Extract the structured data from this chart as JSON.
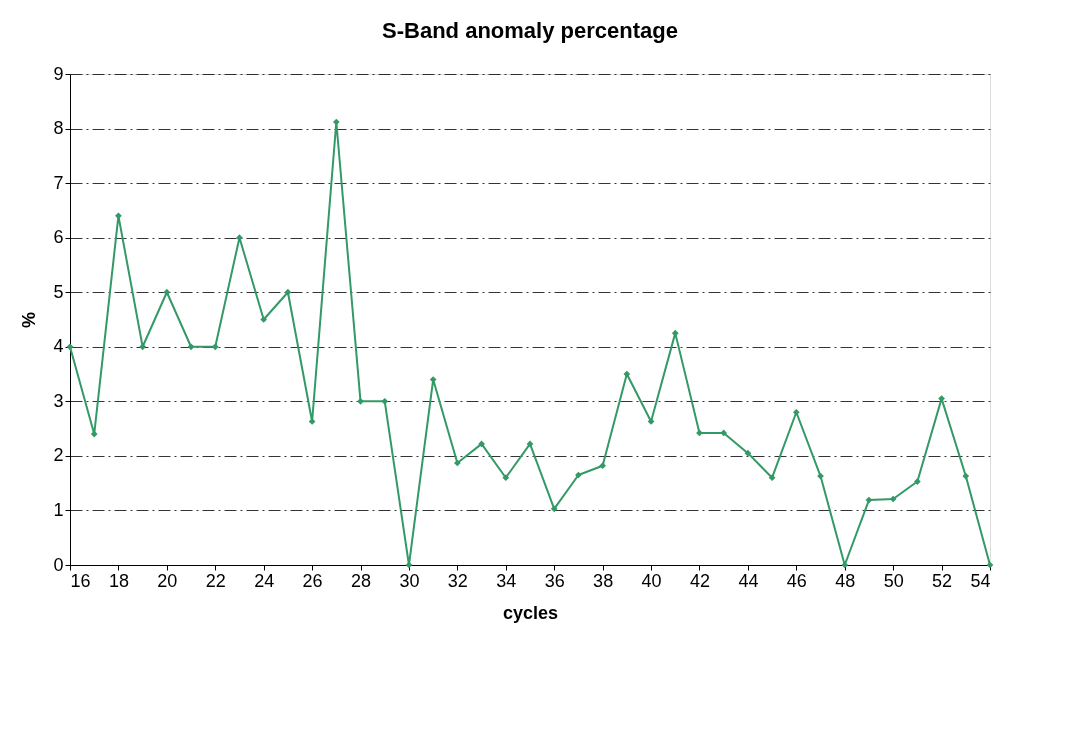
{
  "chart_data": {
    "type": "line",
    "title": "S-Band anomaly percentage",
    "xlabel": "cycles",
    "ylabel": "%",
    "x": [
      16,
      17,
      18,
      19,
      20,
      21,
      22,
      23,
      24,
      25,
      26,
      27,
      28,
      29,
      30,
      31,
      32,
      33,
      34,
      35,
      36,
      37,
      38,
      39,
      40,
      41,
      42,
      43,
      44,
      45,
      46,
      47,
      48,
      49,
      50,
      51,
      52,
      53,
      54
    ],
    "series": [
      {
        "color": "#339966",
        "values": [
          4,
          2.4,
          6.4,
          4,
          5,
          4,
          4,
          6,
          4.5,
          5,
          2.63,
          8.12,
          3,
          3,
          0,
          3.4,
          1.87,
          2.22,
          1.6,
          2.22,
          1.03,
          1.65,
          1.82,
          3.5,
          2.63,
          4.25,
          2.42,
          2.42,
          2.05,
          1.6,
          2.8,
          1.63,
          0,
          1.19,
          1.21,
          1.53,
          3.05,
          1.63,
          0
        ]
      }
    ],
    "xlim": [
      16,
      54
    ],
    "xticks": [
      16,
      18,
      20,
      22,
      24,
      26,
      28,
      30,
      32,
      34,
      36,
      38,
      40,
      42,
      44,
      46,
      48,
      50,
      52,
      54
    ],
    "ylim": [
      0,
      9
    ],
    "yticks": [
      0,
      1,
      2,
      3,
      4,
      5,
      6,
      7,
      8,
      9
    ],
    "grid": "y",
    "marker": "diamond",
    "line_style": "solid"
  }
}
